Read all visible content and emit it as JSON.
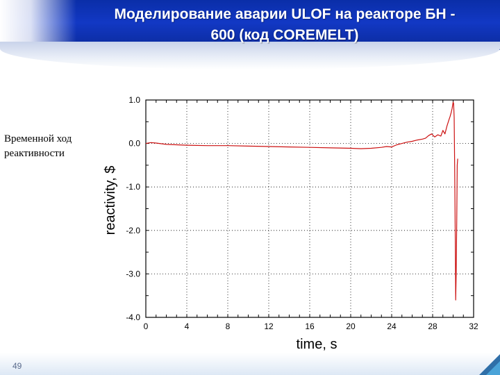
{
  "slide": {
    "title_line1": "Моделирование аварии ULOF на реакторе БН -",
    "title_line2": "600 (код COREMELT)",
    "side_label": "Временной ход реактивности",
    "page_number": "49"
  },
  "colors": {
    "banner": "#1238c4",
    "title_text": "#ffffff",
    "series": "#cc1111",
    "grid": "#000000"
  },
  "chart_data": {
    "type": "line",
    "title": "",
    "xlabel": "time, s",
    "ylabel": "reactivity, $",
    "xlim": [
      0,
      32
    ],
    "ylim": [
      -4.0,
      1.0
    ],
    "xticks": [
      0,
      4,
      8,
      12,
      16,
      20,
      24,
      28,
      32
    ],
    "yticks": [
      1.0,
      0.0,
      -1.0,
      -2.0,
      -3.0,
      -4.0
    ],
    "xtick_labels": [
      "0",
      "4",
      "8",
      "12",
      "16",
      "20",
      "24",
      "28",
      "32"
    ],
    "ytick_labels": [
      "1.0",
      "0.0",
      "-1.0",
      "-2.0",
      "-3.0",
      "-4.0"
    ],
    "grid": "dotted",
    "legend": "none",
    "series": [
      {
        "x": [
          0,
          0.5,
          1,
          2,
          3,
          4,
          6,
          8,
          10,
          12,
          14,
          16,
          18,
          20,
          21,
          22,
          23,
          23.5,
          24,
          24.5,
          25,
          25.5,
          26,
          26.5,
          27,
          27.3,
          27.6,
          27.9,
          28.2,
          28.5,
          28.8,
          29.0,
          29.2,
          29.4,
          29.6,
          29.7,
          29.8,
          29.9,
          30.0,
          30.05,
          30.1,
          30.15,
          30.2,
          30.25,
          30.3,
          30.35,
          30.4,
          30.45
        ],
        "y": [
          0.0,
          0.02,
          0.01,
          -0.02,
          -0.03,
          -0.04,
          -0.05,
          -0.05,
          -0.06,
          -0.07,
          -0.08,
          -0.09,
          -0.1,
          -0.11,
          -0.12,
          -0.11,
          -0.09,
          -0.07,
          -0.08,
          -0.03,
          0.0,
          0.03,
          0.05,
          0.08,
          0.1,
          0.12,
          0.18,
          0.22,
          0.15,
          0.2,
          0.17,
          0.3,
          0.22,
          0.4,
          0.55,
          0.62,
          0.7,
          0.8,
          0.95,
          0.92,
          0.6,
          -0.5,
          -2.0,
          -3.6,
          -3.0,
          -1.8,
          -0.5,
          -0.35
        ]
      }
    ]
  }
}
